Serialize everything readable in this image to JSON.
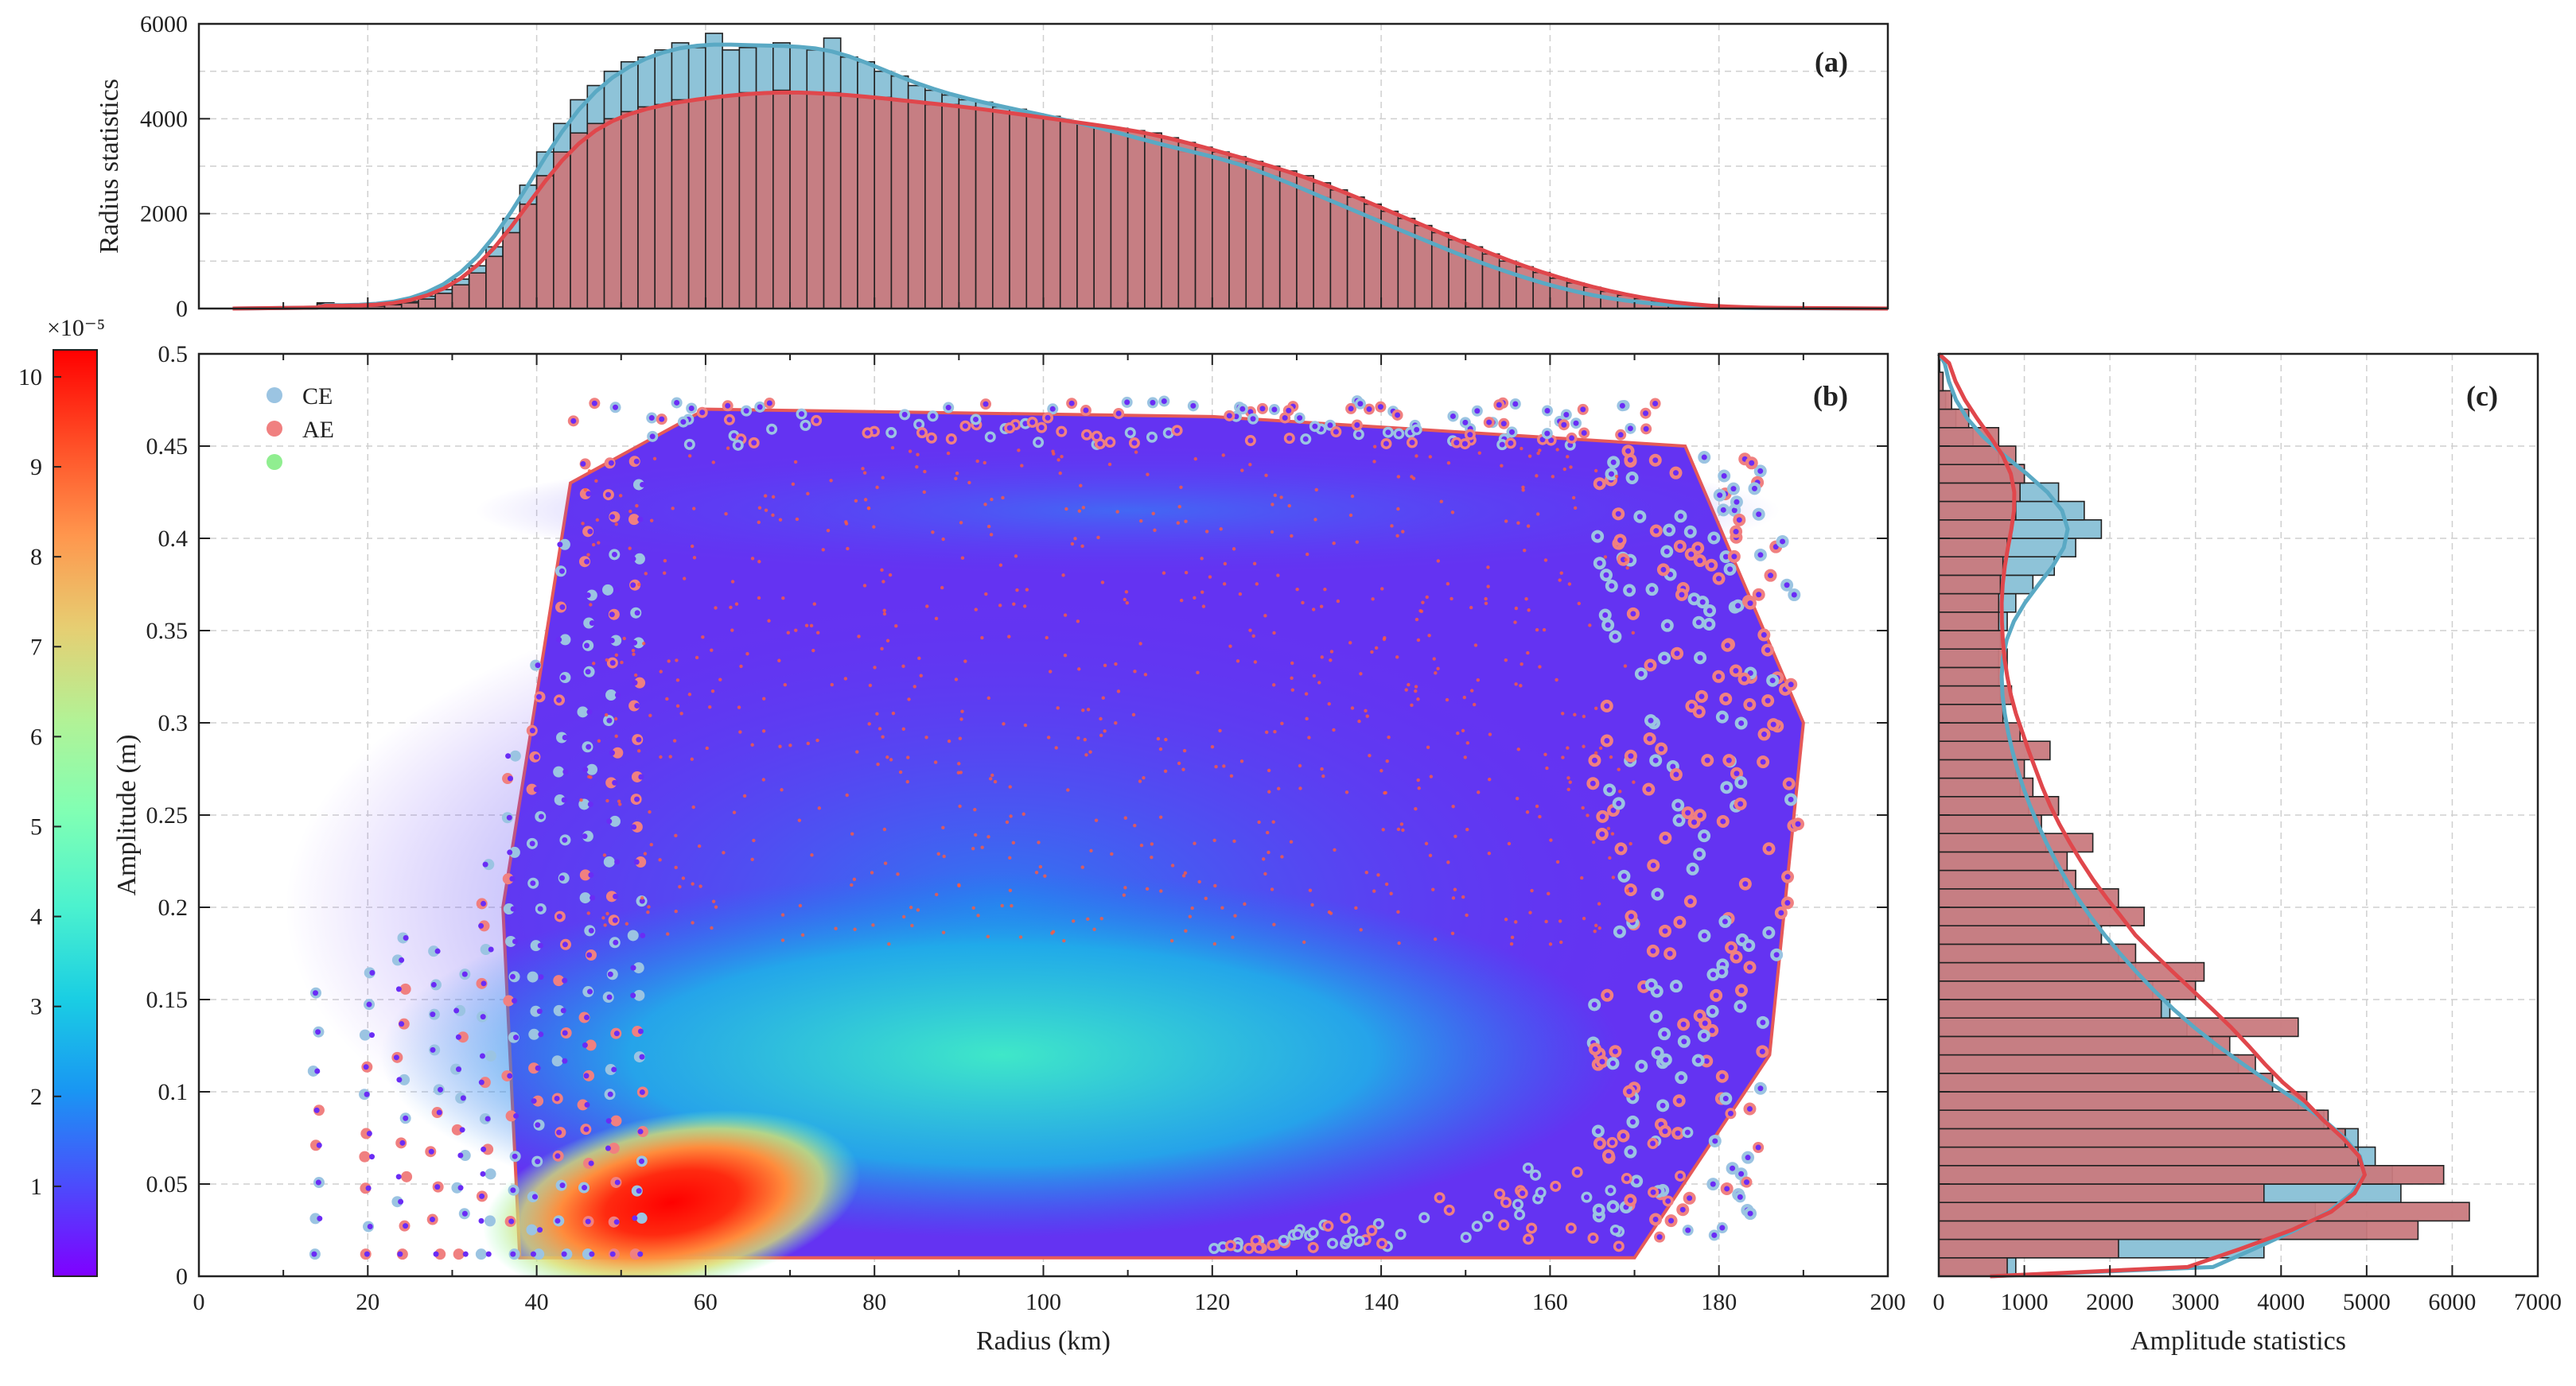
{
  "chart_data": [
    {
      "id": "a",
      "type": "bar",
      "panel_label": "(a)",
      "xlim": [
        0,
        200
      ],
      "ylim": [
        0,
        6000
      ],
      "ylabel": "Radius statistics",
      "yticks": [
        "0",
        "2000",
        "4000",
        "6000"
      ],
      "bin_width_km": 2,
      "series": [
        {
          "name": "CE",
          "color": "#8ec3d8",
          "line_color": "#5aa9c4",
          "bin_start_km": [
            14,
            16,
            18,
            20,
            22,
            24,
            26,
            28,
            30,
            32,
            34,
            36,
            38,
            40,
            42,
            44,
            46,
            48,
            50,
            52,
            54,
            56,
            58,
            60,
            62,
            64,
            66,
            68,
            70,
            72,
            74,
            76,
            78,
            80,
            82,
            84,
            86,
            88,
            90,
            92,
            94,
            96,
            98,
            100,
            102,
            104,
            106,
            108,
            110,
            112,
            114,
            116,
            118,
            120,
            122,
            124,
            126,
            128,
            130,
            132,
            134,
            136,
            138,
            140,
            142,
            144,
            146,
            148,
            150,
            152,
            154,
            156,
            158,
            160,
            162,
            164,
            166,
            168,
            170,
            172,
            174,
            176,
            178,
            180,
            182,
            184,
            186
          ],
          "values": [
            120,
            40,
            50,
            60,
            90,
            150,
            260,
            400,
            620,
            900,
            1300,
            1900,
            2600,
            3300,
            3900,
            4400,
            4700,
            5000,
            5200,
            5300,
            5450,
            5600,
            5500,
            5800,
            5450,
            5500,
            5550,
            5600,
            5500,
            5450,
            5700,
            5300,
            5200,
            5000,
            4900,
            4700,
            4600,
            4500,
            4400,
            4350,
            4250,
            4200,
            4100,
            4050,
            3950,
            3900,
            3800,
            3700,
            3600,
            3500,
            3400,
            3300,
            3250,
            3200,
            3100,
            2950,
            2800,
            2650,
            2500,
            2350,
            2200,
            2050,
            1900,
            1750,
            1600,
            1450,
            1300,
            1150,
            1000,
            880,
            760,
            640,
            530,
            430,
            340,
            260,
            200,
            150,
            110,
            80,
            55,
            40,
            25,
            15,
            10,
            6,
            3
          ]
        },
        {
          "name": "AE",
          "color": "#c97a7e",
          "line_color": "#e0474c",
          "bin_start_km": [
            14,
            16,
            18,
            20,
            22,
            24,
            26,
            28,
            30,
            32,
            34,
            36,
            38,
            40,
            42,
            44,
            46,
            48,
            50,
            52,
            54,
            56,
            58,
            60,
            62,
            64,
            66,
            68,
            70,
            72,
            74,
            76,
            78,
            80,
            82,
            84,
            86,
            88,
            90,
            92,
            94,
            96,
            98,
            100,
            102,
            104,
            106,
            108,
            110,
            112,
            114,
            116,
            118,
            120,
            122,
            124,
            126,
            128,
            130,
            132,
            134,
            136,
            138,
            140,
            142,
            144,
            146,
            148,
            150,
            152,
            154,
            156,
            158,
            160,
            162,
            164,
            166,
            168,
            170,
            172,
            174,
            176,
            178,
            180,
            182,
            184,
            186
          ],
          "values": [
            100,
            30,
            40,
            50,
            80,
            120,
            200,
            320,
            500,
            750,
            1100,
            1600,
            2200,
            2800,
            3300,
            3700,
            3900,
            4000,
            4150,
            4250,
            4300,
            4400,
            4400,
            4450,
            4500,
            4550,
            4550,
            4600,
            4550,
            4550,
            4550,
            4500,
            4450,
            4450,
            4400,
            4350,
            4300,
            4300,
            4250,
            4200,
            4150,
            4100,
            4050,
            4000,
            3950,
            3900,
            3850,
            3800,
            3750,
            3700,
            3600,
            3500,
            3400,
            3300,
            3200,
            3100,
            3000,
            2900,
            2800,
            2650,
            2500,
            2350,
            2200,
            2050,
            1900,
            1750,
            1600,
            1450,
            1300,
            1150,
            1000,
            880,
            760,
            640,
            540,
            450,
            360,
            280,
            210,
            150,
            110,
            75,
            50,
            30,
            18,
            10,
            5
          ]
        }
      ]
    },
    {
      "id": "b",
      "type": "scatter",
      "panel_label": "(b)",
      "xlabel": "Radius (km)",
      "ylabel": "Amplitude (m)",
      "xlim": [
        0,
        200
      ],
      "ylim": [
        0,
        0.5
      ],
      "xticks": [
        "0",
        "20",
        "40",
        "60",
        "80",
        "100",
        "120",
        "140",
        "160",
        "180",
        "200"
      ],
      "yticks": [
        "0",
        "0.05",
        "0.1",
        "0.15",
        "0.2",
        "0.25",
        "0.3",
        "0.35",
        "0.4",
        "0.45",
        "0.5"
      ],
      "legend": [
        {
          "label": "CE",
          "color": "#9bc4e2"
        },
        {
          "label": "AE",
          "color": "#f08080"
        },
        {
          "label": "",
          "color": "#90ee90"
        }
      ],
      "legend_position": "top-left",
      "density_peak": {
        "radius_km": 56,
        "amplitude_m": 0.04
      },
      "point_cloud_extent": {
        "radius_min_km": 14,
        "radius_max_km": 195,
        "amplitude_min_m": 0.008,
        "amplitude_max_m": 0.48
      }
    },
    {
      "id": "c",
      "type": "bar",
      "orientation": "horizontal",
      "panel_label": "(c)",
      "xlabel": "Amplitude statistics",
      "xlim": [
        0,
        7000
      ],
      "ylim": [
        0,
        0.5
      ],
      "xticks": [
        "0",
        "1000",
        "2000",
        "3000",
        "4000",
        "5000",
        "6000",
        "7000"
      ],
      "bin_width_m": 0.01,
      "series": [
        {
          "name": "CE",
          "color": "#8ec3d8",
          "line_color": "#5aa9c4",
          "bin_start_m": [
            0.0,
            0.01,
            0.02,
            0.03,
            0.04,
            0.05,
            0.06,
            0.07,
            0.08,
            0.09,
            0.1,
            0.11,
            0.12,
            0.13,
            0.14,
            0.15,
            0.16,
            0.17,
            0.18,
            0.19,
            0.2,
            0.21,
            0.22,
            0.23,
            0.24,
            0.25,
            0.26,
            0.27,
            0.28,
            0.29,
            0.3,
            0.31,
            0.32,
            0.33,
            0.34,
            0.35,
            0.36,
            0.37,
            0.38,
            0.39,
            0.4,
            0.41,
            0.42,
            0.43,
            0.44,
            0.45,
            0.46,
            0.47,
            0.48,
            0.49
          ],
          "values": [
            900,
            3800,
            5000,
            4400,
            5400,
            5300,
            5100,
            4900,
            4500,
            4200,
            3900,
            3500,
            3200,
            2900,
            2700,
            2500,
            2300,
            2100,
            1900,
            1750,
            1600,
            1450,
            1350,
            1250,
            1150,
            1050,
            950,
            900,
            850,
            800,
            750,
            720,
            700,
            700,
            720,
            800,
            900,
            1100,
            1350,
            1600,
            1900,
            1700,
            1400,
            1000,
            700,
            400,
            200,
            80,
            30,
            10
          ]
        },
        {
          "name": "AE",
          "color": "#c97a7e",
          "line_color": "#e0474c",
          "bin_start_m": [
            0.0,
            0.01,
            0.02,
            0.03,
            0.04,
            0.05,
            0.06,
            0.07,
            0.08,
            0.09,
            0.1,
            0.11,
            0.12,
            0.13,
            0.14,
            0.15,
            0.16,
            0.17,
            0.18,
            0.19,
            0.2,
            0.21,
            0.22,
            0.23,
            0.24,
            0.25,
            0.26,
            0.27,
            0.28,
            0.29,
            0.3,
            0.31,
            0.32,
            0.33,
            0.34,
            0.35,
            0.36,
            0.37,
            0.38,
            0.39,
            0.4,
            0.41,
            0.42,
            0.43,
            0.44,
            0.45,
            0.46,
            0.47,
            0.48,
            0.49
          ],
          "values": [
            800,
            2100,
            5600,
            6200,
            3800,
            5900,
            4900,
            4750,
            4550,
            4300,
            3900,
            3700,
            3400,
            4200,
            2600,
            3000,
            3100,
            2300,
            1900,
            2400,
            2100,
            1600,
            1500,
            1800,
            1200,
            1400,
            1100,
            1000,
            1300,
            950,
            750,
            850,
            750,
            800,
            750,
            700,
            700,
            720,
            750,
            800,
            850,
            900,
            950,
            1000,
            900,
            700,
            350,
            150,
            50,
            10
          ]
        }
      ]
    }
  ],
  "colorbar": {
    "exponent_label": "×10⁻⁵",
    "ticks": [
      "1",
      "2",
      "3",
      "4",
      "5",
      "6",
      "7",
      "8",
      "9",
      "10"
    ],
    "range": [
      0,
      10.3
    ],
    "colormap": [
      "#7f00ff",
      "#4b4dfc",
      "#1996f3",
      "#1acee3",
      "#4cf2ce",
      "#80ffb4",
      "#b2f296",
      "#e6ce72",
      "#ff964d",
      "#ff4d26",
      "#ff0000"
    ]
  }
}
